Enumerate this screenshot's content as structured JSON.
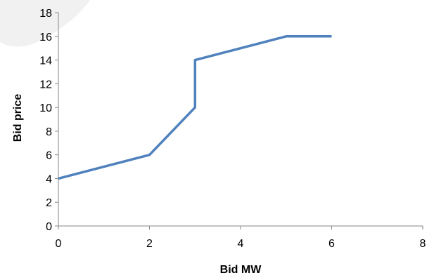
{
  "chart_data": {
    "type": "line",
    "xlabel": "Bid MW",
    "ylabel": "Bid price",
    "xlim": [
      0,
      8
    ],
    "ylim": [
      0,
      18
    ],
    "xticks": [
      0,
      2,
      4,
      6,
      8
    ],
    "yticks": [
      0,
      2,
      4,
      6,
      8,
      10,
      12,
      14,
      16,
      18
    ],
    "grid": false,
    "legend": "none",
    "series": [
      {
        "color": "#4f81bd",
        "points": [
          {
            "x": 0,
            "y": 4
          },
          {
            "x": 2,
            "y": 6
          },
          {
            "x": 3,
            "y": 10
          },
          {
            "x": 3,
            "y": 14
          },
          {
            "x": 5,
            "y": 16
          },
          {
            "x": 6,
            "y": 16
          }
        ]
      }
    ]
  }
}
